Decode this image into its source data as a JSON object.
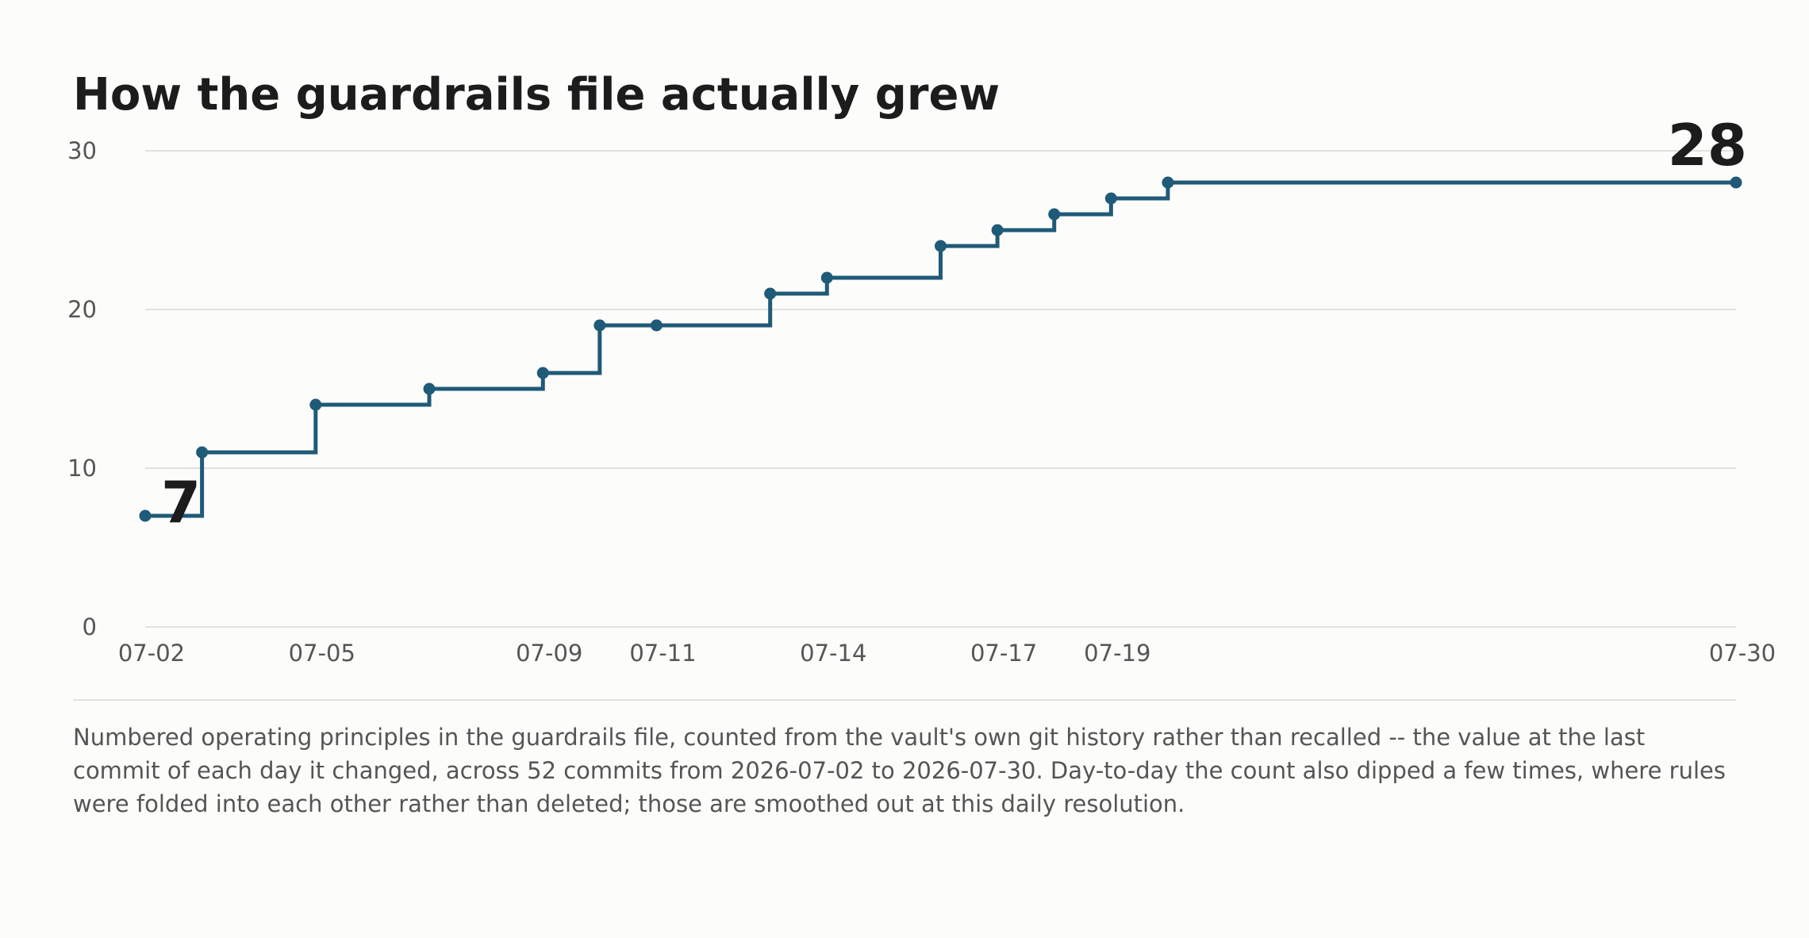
{
  "chart_data": {
    "type": "line",
    "step": true,
    "title": "How the guardrails file actually grew",
    "xlabel": "",
    "ylabel": "",
    "x": [
      "07-02",
      "07-03",
      "07-05",
      "07-07",
      "07-09",
      "07-10",
      "07-11",
      "07-13",
      "07-14",
      "07-16",
      "07-17",
      "07-18",
      "07-19",
      "07-20",
      "07-30"
    ],
    "values": [
      7,
      11,
      14,
      15,
      16,
      19,
      19,
      21,
      22,
      24,
      25,
      26,
      27,
      28,
      28
    ],
    "x_tick_labels": [
      "07-02",
      "07-05",
      "07-09",
      "07-11",
      "07-14",
      "07-17",
      "07-19",
      "07-30"
    ],
    "y_ticks": [
      0,
      10,
      20,
      30
    ],
    "ylim": [
      0,
      30
    ],
    "grid": "horizontal",
    "legend": "none",
    "annotations": {
      "start": "7",
      "end": "28"
    },
    "color": "#1f5a78",
    "gridline_color": "#d8d8d6",
    "text_color": "#1c1c1c"
  },
  "caption": "Numbered operating principles in the guardrails file, counted from the vault's own git history rather than recalled -- the value at the last commit of each day it changed, across 52 commits from 2026-07-02 to 2026-07-30. Day-to-day the count also dipped a few times, where rules were folded into each other rather than deleted; those are smoothed out at this daily resolution."
}
